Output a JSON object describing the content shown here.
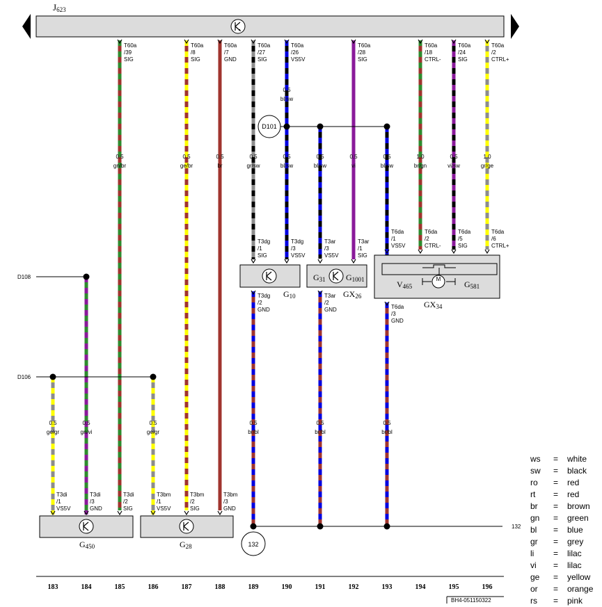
{
  "module": {
    "name": "J",
    "sub": "623"
  },
  "colors": {
    "gn": "#2e8b2e",
    "br": "#a0342e",
    "ge": "#ffff00",
    "sw": "#000000",
    "gr": "#8c8c8c",
    "bl": "#0000e0",
    "vi": "#8a1a9a",
    "box": "#dcdcdc"
  },
  "top_pins": [
    {
      "conn": "T60a",
      "pin": "/39",
      "sig": "SIG",
      "size": "0.5",
      "color": "gn/br"
    },
    {
      "conn": "T60a",
      "pin": "/8",
      "sig": "SIG",
      "size": "0.5",
      "color": "ge/br"
    },
    {
      "conn": "T60a",
      "pin": "/7",
      "sig": "GND",
      "size": "0.5",
      "color": "br"
    },
    {
      "conn": "T60a",
      "pin": "/27",
      "sig": "SIG",
      "size": "0.5",
      "color": "gr/sw"
    },
    {
      "conn": "T60a",
      "pin": "/26",
      "sig": "VS5V",
      "size": "0.5",
      "color": "bl/sw"
    },
    {
      "conn": "T60a",
      "pin": "/28",
      "sig": "SIG",
      "size": "0.5",
      "color": "vi"
    },
    {
      "conn": "T60a",
      "pin": "/18",
      "sig": "CTRL-",
      "size": "1.0",
      "color": "br/gn"
    },
    {
      "conn": "T60a",
      "pin": "/24",
      "sig": "SIG",
      "size": "0.5",
      "color": "vi/sw"
    },
    {
      "conn": "T60a",
      "pin": "/2",
      "sig": "CTRL+",
      "size": "1.0",
      "color": "gr/ge"
    }
  ],
  "upper_wire_label": {
    "size": "0.5",
    "color": "bl/sw"
  },
  "upper_extra_wires": [
    {
      "size": "0.5",
      "color": "bl/sw"
    },
    {
      "size": "0.5",
      "color": "bl/sw"
    },
    {
      "size": "0.5",
      "color": "bl/sw"
    }
  ],
  "splice_d101": "D101",
  "splice_d108": "D108",
  "splice_d106": "D106",
  "ground_point": "132",
  "ground_edge_label": "132",
  "mid_pins": [
    {
      "conn": "T3dg",
      "pin": "/1",
      "sig": "SIG"
    },
    {
      "conn": "T3dg",
      "pin": "/3",
      "sig": "VS5V"
    },
    {
      "conn": "T3ar",
      "pin": "/3",
      "sig": "VS5V"
    },
    {
      "conn": "T3ar",
      "pin": "/1",
      "sig": "SIG"
    },
    {
      "conn": "T6da",
      "pin": "/1",
      "sig": "VS5V"
    },
    {
      "conn": "T6da",
      "pin": "/2",
      "sig": "CTRL-"
    },
    {
      "conn": "T6da",
      "pin": "/5",
      "sig": "SIG"
    },
    {
      "conn": "T6da",
      "pin": "/6",
      "sig": "CTRL+"
    }
  ],
  "gnd_pins": [
    {
      "conn": "T3dg",
      "pin": "/2",
      "sig": "GND"
    },
    {
      "conn": "T3ar",
      "pin": "/2",
      "sig": "GND"
    },
    {
      "conn": "T6da",
      "pin": "/3",
      "sig": "GND"
    }
  ],
  "lower_wires": [
    {
      "size": "0.5",
      "color": "br/bl"
    },
    {
      "size": "0.5",
      "color": "br/bl"
    },
    {
      "size": "0.5",
      "color": "br/bl"
    }
  ],
  "left_wires": [
    {
      "size": "0.5",
      "color": "ge/gr"
    },
    {
      "size": "0.5",
      "color": "gn/vi"
    },
    {
      "size": "0.5",
      "color": "ge/gr"
    }
  ],
  "bottom_pins": [
    {
      "conn": "T3di",
      "pin": "/1",
      "sig": "VS5V"
    },
    {
      "conn": "T3di",
      "pin": "/3",
      "sig": "GND"
    },
    {
      "conn": "T3di",
      "pin": "/2",
      "sig": "SIG"
    },
    {
      "conn": "T3bm",
      "pin": "/1",
      "sig": "VS5V"
    },
    {
      "conn": "T3bm",
      "pin": "/2",
      "sig": "SIG"
    },
    {
      "conn": "T3bm",
      "pin": "/3",
      "sig": "GND"
    }
  ],
  "components": {
    "g10": {
      "name": "G",
      "sub": "10"
    },
    "g31": {
      "name": "G",
      "sub": "31"
    },
    "g1001": {
      "name": "G",
      "sub": "1001"
    },
    "gx26": {
      "name": "GX",
      "sub": "26"
    },
    "v465": {
      "name": "V",
      "sub": "465"
    },
    "g581": {
      "name": "G",
      "sub": "581"
    },
    "gx34": {
      "name": "GX",
      "sub": "34"
    },
    "g450": {
      "name": "G",
      "sub": "450"
    },
    "g28": {
      "name": "G",
      "sub": "28"
    },
    "motor": "M"
  },
  "columns": [
    "183",
    "184",
    "185",
    "186",
    "187",
    "188",
    "189",
    "190",
    "191",
    "192",
    "193",
    "194",
    "195",
    "196"
  ],
  "doc_id": "BH4-051150322",
  "legend": [
    {
      "abbr": "ws",
      "eq": "=",
      "name": "white"
    },
    {
      "abbr": "sw",
      "eq": "=",
      "name": "black"
    },
    {
      "abbr": "ro",
      "eq": "=",
      "name": "red"
    },
    {
      "abbr": "rt",
      "eq": "=",
      "name": "red"
    },
    {
      "abbr": "br",
      "eq": "=",
      "name": "brown"
    },
    {
      "abbr": "gn",
      "eq": "=",
      "name": "green"
    },
    {
      "abbr": "bl",
      "eq": "=",
      "name": "blue"
    },
    {
      "abbr": "gr",
      "eq": "=",
      "name": "grey"
    },
    {
      "abbr": "li",
      "eq": "=",
      "name": "lilac"
    },
    {
      "abbr": "vi",
      "eq": "=",
      "name": "lilac"
    },
    {
      "abbr": "ge",
      "eq": "=",
      "name": "yellow"
    },
    {
      "abbr": "or",
      "eq": "=",
      "name": "orange"
    },
    {
      "abbr": "rs",
      "eq": "=",
      "name": "pink"
    }
  ]
}
